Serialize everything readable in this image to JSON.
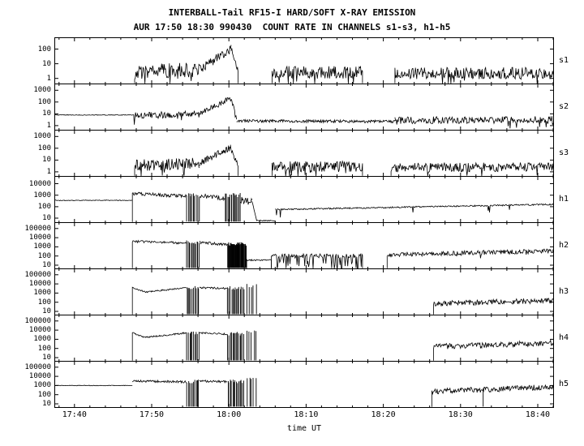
{
  "header": {
    "title": "INTERBALL-Tail RF15-I HARD/SOFT X-RAY EMISSION",
    "subtitle": "AUR 17:50 18:30 990430  COUNT RATE IN CHANNELS s1-s3, h1-h5"
  },
  "colors": {
    "trace": "#000000",
    "background": "#ffffff",
    "axis": "#000000"
  },
  "chart_data": {
    "type": "line",
    "title": "INTERBALL-Tail RF15-I HARD/SOFT X-RAY EMISSION",
    "subtitle": "AUR 17:50 18:30 990430  COUNT RATE IN CHANNELS s1-s3, h1-h5",
    "xlabel": "time UT",
    "y_scale": "log10",
    "grid": false,
    "x_axis": {
      "range_minutes": [
        -2.5,
        62
      ],
      "start_time": "17:40",
      "tick_minutes": [
        0,
        10,
        20,
        30,
        40,
        50,
        60
      ],
      "tick_labels": [
        "17:40",
        "17:50",
        "18:00",
        "18:10",
        "18:20",
        "18:30",
        "18:40"
      ],
      "minor_tick_step_minutes": 2
    },
    "panels": [
      {
        "name": "s1",
        "label": "s1",
        "log_range": [
          -0.35,
          2.75
        ],
        "yticks": [
          1,
          10,
          100
        ],
        "segments": [
          {
            "type": "noise",
            "t": [
              7.8,
              16.2
            ],
            "l": [
              0.45,
              0.6
            ],
            "amp": 0.5,
            "spikep": 0.06,
            "spiked": 0.9,
            "edges": [
              1,
              0
            ]
          },
          {
            "type": "noise",
            "t": [
              16.2,
              20.3
            ],
            "l": [
              0.6,
              2.0
            ],
            "amp": 0.3,
            "edges": [
              0,
              0
            ]
          },
          {
            "type": "noise",
            "t": [
              20.3,
              21.2
            ],
            "l": [
              2.0,
              0.4
            ],
            "amp": 0.25,
            "edges": [
              0,
              1
            ]
          },
          {
            "type": "noise",
            "t": [
              25.6,
              37.3
            ],
            "l": [
              0.4,
              0.4
            ],
            "amp": 0.45,
            "spikep": 0.05,
            "spiked": 0.8,
            "edges": [
              1,
              1
            ]
          },
          {
            "type": "noise",
            "t": [
              41.5,
              62
            ],
            "l": [
              0.35,
              0.35
            ],
            "amp": 0.4,
            "spikep": 0.04,
            "spiked": 0.7,
            "edges": [
              1,
              0
            ]
          }
        ]
      },
      {
        "name": "s2",
        "label": "s2",
        "log_range": [
          -0.35,
          3.5
        ],
        "yticks": [
          1,
          10,
          100,
          1000
        ],
        "segments": [
          {
            "type": "noise",
            "t": [
              -2.5,
              7.5
            ],
            "l": [
              0.9,
              0.9
            ],
            "amp": 0.03,
            "edges": [
              0,
              0
            ]
          },
          {
            "type": "noise",
            "t": [
              7.5,
              16.2
            ],
            "l": [
              0.85,
              1.0
            ],
            "amp": 0.3,
            "spikep": 0.04,
            "spiked": 0.6,
            "edges": [
              0,
              0
            ]
          },
          {
            "type": "noise",
            "t": [
              16.2,
              20.3
            ],
            "l": [
              1.0,
              2.35
            ],
            "amp": 0.25,
            "edges": [
              0,
              0
            ]
          },
          {
            "type": "noise",
            "t": [
              20.3,
              21.0
            ],
            "l": [
              2.35,
              0.45
            ],
            "amp": 0.2,
            "edges": [
              0,
              0
            ]
          },
          {
            "type": "noise",
            "t": [
              21.0,
              41.5
            ],
            "l": [
              0.4,
              0.35
            ],
            "amp": 0.12,
            "edges": [
              0,
              0
            ]
          },
          {
            "type": "noise",
            "t": [
              41.5,
              62
            ],
            "l": [
              0.45,
              0.5
            ],
            "amp": 0.3,
            "spikep": 0.03,
            "spiked": 0.5,
            "edges": [
              0,
              0
            ]
          }
        ]
      },
      {
        "name": "s3",
        "label": "s3",
        "log_range": [
          -0.35,
          3.5
        ],
        "yticks": [
          1,
          10,
          100,
          1000
        ],
        "segments": [
          {
            "type": "noise",
            "t": [
              7.8,
              16.2
            ],
            "l": [
              0.55,
              0.7
            ],
            "amp": 0.5,
            "spikep": 0.06,
            "spiked": 0.9,
            "edges": [
              1,
              0
            ]
          },
          {
            "type": "noise",
            "t": [
              16.2,
              20.2
            ],
            "l": [
              0.7,
              2.05
            ],
            "amp": 0.3,
            "edges": [
              0,
              0
            ]
          },
          {
            "type": "noise",
            "t": [
              20.2,
              21.2
            ],
            "l": [
              2.05,
              0.45
            ],
            "amp": 0.25,
            "edges": [
              0,
              1
            ]
          },
          {
            "type": "noise",
            "t": [
              25.6,
              37.3
            ],
            "l": [
              0.45,
              0.45
            ],
            "amp": 0.45,
            "spikep": 0.05,
            "spiked": 0.8,
            "edges": [
              1,
              1
            ]
          },
          {
            "type": "noise",
            "t": [
              41.0,
              62
            ],
            "l": [
              0.35,
              0.42
            ],
            "amp": 0.38,
            "spikep": 0.04,
            "spiked": 0.6,
            "edges": [
              1,
              0
            ]
          }
        ]
      },
      {
        "name": "h1",
        "label": "h1",
        "log_range": [
          0.65,
          4.6
        ],
        "yticks": [
          10,
          100,
          1000,
          10000
        ],
        "segments": [
          {
            "type": "noise",
            "t": [
              -2.5,
              7.5
            ],
            "l": [
              2.55,
              2.55
            ],
            "amp": 0.03,
            "edges": [
              0,
              0
            ]
          },
          {
            "type": "noise",
            "t": [
              7.5,
              14.5
            ],
            "l": [
              3.15,
              2.9
            ],
            "amp": 0.15,
            "edges": [
              1,
              0
            ]
          },
          {
            "type": "vlines",
            "t": [
              14.5,
              16.2
            ],
            "top": 3.0,
            "bot": 0.7,
            "n": 10
          },
          {
            "type": "noise",
            "t": [
              16.2,
              19.5
            ],
            "l": [
              3.0,
              2.7
            ],
            "amp": 0.2,
            "edges": [
              0,
              0
            ]
          },
          {
            "type": "vlines",
            "t": [
              19.5,
              21.5
            ],
            "top": 3.0,
            "bot": 0.7,
            "n": 14
          },
          {
            "type": "noise",
            "t": [
              21.5,
              23.0
            ],
            "l": [
              2.6,
              2.4
            ],
            "amp": 0.3,
            "edges": [
              0,
              0
            ]
          },
          {
            "type": "noise",
            "t": [
              23.0,
              23.6
            ],
            "l": [
              2.4,
              0.8
            ],
            "amp": 0.08,
            "edges": [
              0,
              0
            ]
          },
          {
            "type": "noise",
            "t": [
              23.6,
              26.0
            ],
            "l": [
              0.78,
              0.78
            ],
            "amp": 0.05,
            "edges": [
              0,
              0
            ]
          },
          {
            "type": "noise",
            "t": [
              26.0,
              62
            ],
            "l": [
              1.75,
              2.2
            ],
            "amp": 0.06,
            "spikep": 0.006,
            "spiked": 0.6,
            "edges": [
              0,
              0
            ]
          }
        ]
      },
      {
        "name": "h2",
        "label": "h2",
        "log_range": [
          0.65,
          5.6
        ],
        "yticks": [
          10,
          100,
          1000,
          10000,
          100000
        ],
        "segments": [
          {
            "type": "noise",
            "t": [
              7.5,
              14.5
            ],
            "l": [
              3.6,
              3.4
            ],
            "amp": 0.12,
            "edges": [
              1,
              0
            ]
          },
          {
            "type": "vlines",
            "t": [
              14.5,
              16.2
            ],
            "top": 3.5,
            "bot": 0.7,
            "n": 12
          },
          {
            "type": "noise",
            "t": [
              16.2,
              19.8
            ],
            "l": [
              3.5,
              3.2
            ],
            "amp": 0.15,
            "edges": [
              0,
              0
            ]
          },
          {
            "type": "vlines",
            "t": [
              19.8,
              22.3
            ],
            "top": 3.3,
            "bot": 0.7,
            "n": 42
          },
          {
            "type": "noise",
            "t": [
              22.3,
              25.5
            ],
            "l": [
              1.55,
              1.55
            ],
            "amp": 0.07,
            "edges": [
              1,
              1
            ]
          },
          {
            "type": "noise",
            "t": [
              25.5,
              37.3
            ],
            "l": [
              2.0,
              2.0
            ],
            "amp": 0.25,
            "spikep": 0.2,
            "spiked": 1.3,
            "edges": [
              1,
              1
            ]
          },
          {
            "type": "noise",
            "t": [
              40.5,
              62
            ],
            "l": [
              2.15,
              2.55
            ],
            "amp": 0.25,
            "spikep": 0.02,
            "spiked": 0.5,
            "edges": [
              1,
              0
            ]
          }
        ]
      },
      {
        "name": "h3",
        "label": "h3",
        "log_range": [
          0.65,
          5.6
        ],
        "yticks": [
          10,
          100,
          1000,
          10000,
          100000
        ],
        "segments": [
          {
            "type": "noise",
            "t": [
              7.5,
              9.2
            ],
            "l": [
              3.6,
              3.1
            ],
            "amp": 0.08,
            "edges": [
              1,
              0
            ]
          },
          {
            "type": "noise",
            "t": [
              9.2,
              14.5
            ],
            "l": [
              3.1,
              3.6
            ],
            "amp": 0.08,
            "edges": [
              0,
              0
            ]
          },
          {
            "type": "vlines",
            "t": [
              14.5,
              16.2
            ],
            "top": 3.6,
            "bot": 0.7,
            "n": 10
          },
          {
            "type": "noise",
            "t": [
              16.2,
              19.8
            ],
            "l": [
              3.6,
              3.5
            ],
            "amp": 0.1,
            "edges": [
              0,
              0
            ]
          },
          {
            "type": "vlines",
            "t": [
              19.8,
              22.0
            ],
            "top": 3.55,
            "bot": 0.7,
            "n": 14
          },
          {
            "type": "vlines",
            "t": [
              22.3,
              23.6
            ],
            "top": 3.8,
            "bot": 0.7,
            "n": 5
          },
          {
            "type": "noise",
            "t": [
              46.5,
              62
            ],
            "l": [
              1.85,
              2.2
            ],
            "amp": 0.3,
            "edges": [
              1,
              0
            ]
          }
        ]
      },
      {
        "name": "h4",
        "label": "h4",
        "log_range": [
          0.65,
          5.6
        ],
        "yticks": [
          10,
          100,
          1000,
          10000,
          100000
        ],
        "segments": [
          {
            "type": "noise",
            "t": [
              7.5,
              9.2
            ],
            "l": [
              3.7,
              3.2
            ],
            "amp": 0.08,
            "edges": [
              1,
              0
            ]
          },
          {
            "type": "noise",
            "t": [
              9.2,
              14.5
            ],
            "l": [
              3.2,
              3.7
            ],
            "amp": 0.08,
            "edges": [
              0,
              0
            ]
          },
          {
            "type": "vlines",
            "t": [
              14.5,
              16.2
            ],
            "top": 3.7,
            "bot": 0.7,
            "n": 10
          },
          {
            "type": "noise",
            "t": [
              16.2,
              19.8
            ],
            "l": [
              3.7,
              3.55
            ],
            "amp": 0.1,
            "edges": [
              0,
              0
            ]
          },
          {
            "type": "vlines",
            "t": [
              19.8,
              22.0
            ],
            "top": 3.6,
            "bot": 0.7,
            "n": 14
          },
          {
            "type": "vlines",
            "t": [
              22.3,
              23.6
            ],
            "top": 3.9,
            "bot": 0.7,
            "n": 5
          },
          {
            "type": "noise",
            "t": [
              46.5,
              62
            ],
            "l": [
              2.2,
              2.6
            ],
            "amp": 0.3,
            "edges": [
              1,
              0
            ]
          }
        ]
      },
      {
        "name": "h5",
        "label": "h5",
        "log_range": [
          0.65,
          5.6
        ],
        "yticks": [
          10,
          100,
          1000,
          10000,
          100000
        ],
        "segments": [
          {
            "type": "noise",
            "t": [
              -2.5,
              7.5
            ],
            "l": [
              3.0,
              3.0
            ],
            "amp": 0.03,
            "edges": [
              0,
              0
            ]
          },
          {
            "type": "noise",
            "t": [
              7.5,
              14.5
            ],
            "l": [
              3.5,
              3.4
            ],
            "amp": 0.12,
            "edges": [
              0,
              0
            ]
          },
          {
            "type": "vlines",
            "t": [
              14.5,
              16.2
            ],
            "top": 3.45,
            "bot": 0.7,
            "n": 10
          },
          {
            "type": "noise",
            "t": [
              16.2,
              19.8
            ],
            "l": [
              3.5,
              3.4
            ],
            "amp": 0.12,
            "edges": [
              0,
              0
            ]
          },
          {
            "type": "vlines",
            "t": [
              19.8,
              22.0
            ],
            "top": 3.45,
            "bot": 0.7,
            "n": 14
          },
          {
            "type": "vlines",
            "t": [
              22.3,
              23.6
            ],
            "top": 3.7,
            "bot": 0.7,
            "n": 5
          },
          {
            "type": "vlines",
            "t": [
              52.8,
              53.1
            ],
            "top": 2.6,
            "bot": 0.7,
            "n": 1
          },
          {
            "type": "noise",
            "t": [
              46.3,
              62
            ],
            "l": [
              2.35,
              2.85
            ],
            "amp": 0.3,
            "edges": [
              1,
              0
            ]
          }
        ]
      }
    ]
  }
}
